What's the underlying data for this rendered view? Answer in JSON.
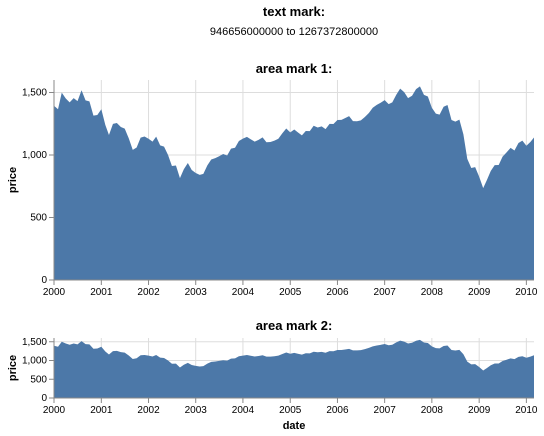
{
  "text_panel": {
    "title": "text mark:",
    "text": "946656000000 to 1267372800000"
  },
  "chart_data": [
    {
      "type": "area",
      "title": "area mark 1:",
      "ylabel": "price",
      "xlabel": "",
      "x_ticks": [
        "2000",
        "2001",
        "2002",
        "2003",
        "2004",
        "2005",
        "2006",
        "2007",
        "2008",
        "2009",
        "2010"
      ],
      "y_ticks": [
        "0",
        "500",
        "1,000",
        "1,500"
      ],
      "ylim": [
        0,
        1600
      ],
      "grid": true,
      "color": "#4c78a8"
    },
    {
      "type": "area",
      "title": "area mark 2:",
      "ylabel": "price",
      "xlabel": "date",
      "x_ticks": [
        "2000",
        "2001",
        "2002",
        "2003",
        "2004",
        "2005",
        "2006",
        "2007",
        "2008",
        "2009",
        "2010"
      ],
      "y_ticks": [
        "0",
        "500",
        "1,000",
        "1,500"
      ],
      "ylim": [
        0,
        1600
      ],
      "grid": true,
      "color": "#4c78a8"
    }
  ],
  "series": {
    "name": "price",
    "x_domain": [
      "2000-01-01",
      "2010-03-01"
    ],
    "dates": [
      "2000-01",
      "2000-02",
      "2000-03",
      "2000-04",
      "2000-05",
      "2000-06",
      "2000-07",
      "2000-08",
      "2000-09",
      "2000-10",
      "2000-11",
      "2000-12",
      "2001-01",
      "2001-02",
      "2001-03",
      "2001-04",
      "2001-05",
      "2001-06",
      "2001-07",
      "2001-08",
      "2001-09",
      "2001-10",
      "2001-11",
      "2001-12",
      "2002-01",
      "2002-02",
      "2002-03",
      "2002-04",
      "2002-05",
      "2002-06",
      "2002-07",
      "2002-08",
      "2002-09",
      "2002-10",
      "2002-11",
      "2002-12",
      "2003-01",
      "2003-02",
      "2003-03",
      "2003-04",
      "2003-05",
      "2003-06",
      "2003-07",
      "2003-08",
      "2003-09",
      "2003-10",
      "2003-11",
      "2003-12",
      "2004-01",
      "2004-02",
      "2004-03",
      "2004-04",
      "2004-05",
      "2004-06",
      "2004-07",
      "2004-08",
      "2004-09",
      "2004-10",
      "2004-11",
      "2004-12",
      "2005-01",
      "2005-02",
      "2005-03",
      "2005-04",
      "2005-05",
      "2005-06",
      "2005-07",
      "2005-08",
      "2005-09",
      "2005-10",
      "2005-11",
      "2005-12",
      "2006-01",
      "2006-02",
      "2006-03",
      "2006-04",
      "2006-05",
      "2006-06",
      "2006-07",
      "2006-08",
      "2006-09",
      "2006-10",
      "2006-11",
      "2006-12",
      "2007-01",
      "2007-02",
      "2007-03",
      "2007-04",
      "2007-05",
      "2007-06",
      "2007-07",
      "2007-08",
      "2007-09",
      "2007-10",
      "2007-11",
      "2007-12",
      "2008-01",
      "2008-02",
      "2008-03",
      "2008-04",
      "2008-05",
      "2008-06",
      "2008-07",
      "2008-08",
      "2008-09",
      "2008-10",
      "2008-11",
      "2008-12",
      "2009-01",
      "2009-02",
      "2009-03",
      "2009-04",
      "2009-05",
      "2009-06",
      "2009-07",
      "2009-08",
      "2009-09",
      "2009-10",
      "2009-11",
      "2009-12",
      "2010-01",
      "2010-02",
      "2010-03"
    ],
    "values": [
      1394,
      1366,
      1499,
      1452,
      1421,
      1455,
      1431,
      1518,
      1437,
      1429,
      1315,
      1320,
      1366,
      1240,
      1160,
      1249,
      1256,
      1224,
      1211,
      1134,
      1041,
      1060,
      1139,
      1148,
      1130,
      1107,
      1147,
      1077,
      1067,
      1000,
      912,
      916,
      815,
      886,
      936,
      880,
      856,
      841,
      849,
      917,
      964,
      975,
      990,
      1008,
      996,
      1051,
      1058,
      1112,
      1131,
      1145,
      1126,
      1107,
      1121,
      1141,
      1102,
      1104,
      1115,
      1130,
      1174,
      1212,
      1181,
      1204,
      1181,
      1157,
      1192,
      1191,
      1234,
      1220,
      1229,
      1207,
      1249,
      1248,
      1280,
      1281,
      1295,
      1311,
      1271,
      1270,
      1277,
      1304,
      1336,
      1378,
      1401,
      1418,
      1439,
      1407,
      1421,
      1482,
      1531,
      1503,
      1455,
      1474,
      1527,
      1549,
      1481,
      1468,
      1378,
      1331,
      1323,
      1386,
      1400,
      1280,
      1267,
      1283,
      1165,
      969,
      896,
      903,
      826,
      735,
      798,
      873,
      919,
      920,
      987,
      1021,
      1057,
      1036,
      1096,
      1115,
      1074,
      1104,
      1140
    ]
  }
}
